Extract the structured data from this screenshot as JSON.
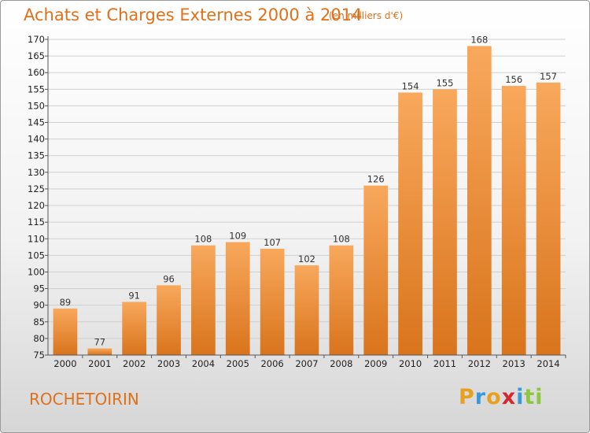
{
  "header": {
    "title": "Achats et Charges Externes 2000 à 2014",
    "subtitle": "(en milliers d'€)"
  },
  "footer": {
    "commune": "ROCHETOIRIN",
    "logo_text": "Proxiti",
    "logo_colors": [
      "#e8a020",
      "#3a9ad9",
      "#e8a020",
      "#d8262e",
      "#3a9ad9",
      "#8dc63f",
      "#8dc63f"
    ]
  },
  "colors": {
    "accent": "#e0701a",
    "bar_light": "#f7a65a",
    "bar_dark": "#d9741c"
  },
  "chart_data": {
    "type": "bar",
    "title": "Achats et Charges Externes 2000 à 2014",
    "subtitle": "(en milliers d'€)",
    "categories": [
      "2000",
      "2001",
      "2002",
      "2003",
      "2004",
      "2005",
      "2006",
      "2007",
      "2008",
      "2009",
      "2010",
      "2011",
      "2012",
      "2013",
      "2014"
    ],
    "values": [
      89,
      77,
      91,
      96,
      108,
      109,
      107,
      102,
      108,
      126,
      154,
      155,
      168,
      156,
      157
    ],
    "ylim": [
      75,
      170
    ],
    "ytick_step": 5,
    "xlabel": "",
    "ylabel": "",
    "grid": true,
    "data_labels": true
  }
}
